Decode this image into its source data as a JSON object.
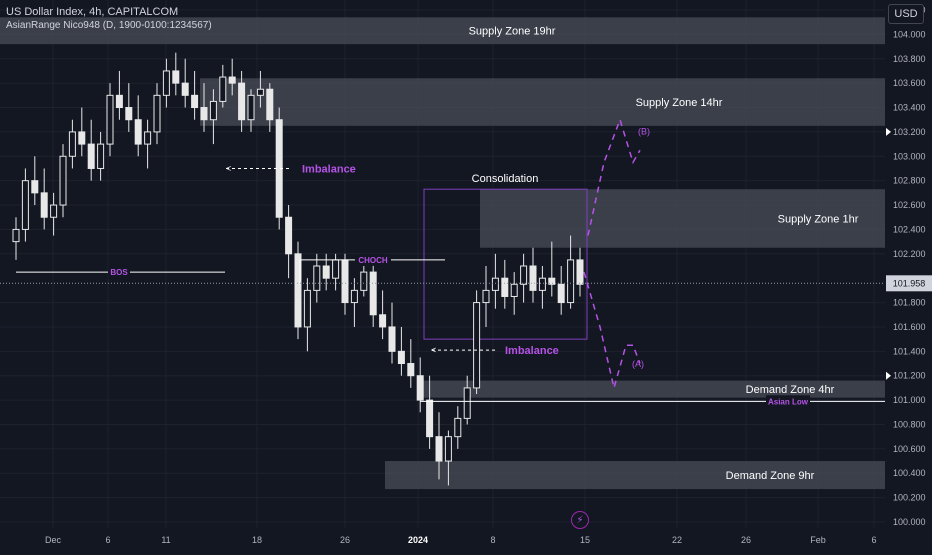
{
  "header": {
    "symbol_title": "US Dollar Index, 4h, CAPITALCOM",
    "indicator_title": "AsianRange Nico948 (D, 1900-0100:1234567)",
    "currency": "USD"
  },
  "colors": {
    "background": "#131722",
    "grid": "#1e222d",
    "candle": "#e8e8e8",
    "zone": "#4a4d58",
    "accent_purple": "#b553e6",
    "axis_text": "#b2b5be"
  },
  "chart_data": {
    "type": "candlestick",
    "timeframe": "4h",
    "ylim": [
      100.0,
      104.2
    ],
    "y_ticks": [
      "104.200",
      "104.000",
      "103.800",
      "103.600",
      "103.400",
      "103.200",
      "103.000",
      "102.800",
      "102.600",
      "102.400",
      "102.200",
      "101.800",
      "101.600",
      "101.400",
      "101.200",
      "101.000",
      "100.800",
      "100.600",
      "100.400",
      "100.200",
      "100.000"
    ],
    "x_ticks": [
      "Dec",
      "6",
      "11",
      "18",
      "26",
      "2024",
      "8",
      "15",
      "22",
      "26",
      "Feb",
      "6"
    ],
    "last_price": "101.958",
    "last_price_value": 101.958,
    "zones": [
      {
        "label": "Supply Zone 19hr",
        "low": 103.92,
        "high": 104.14
      },
      {
        "label": "Supply Zone 14hr",
        "low": 103.25,
        "high": 103.64
      },
      {
        "label": "Supply Zone 1hr",
        "low": 102.25,
        "high": 102.73
      },
      {
        "label": "Demand Zone 4hr",
        "low": 101.02,
        "high": 101.16
      },
      {
        "label": "Demand Zone 9hr",
        "low": 100.27,
        "high": 100.5
      }
    ],
    "annotations": {
      "consolidation": "Consolidation",
      "imbalance_1": "Imbalance",
      "imbalance_2": "Imbalance",
      "bos": "BOS",
      "choch": "CHOCH",
      "asian_low": "Asian Low",
      "point_a": "(A)",
      "point_b": "(B)"
    },
    "candles_ohlc": [
      [
        102.3,
        102.5,
        102.15,
        102.4
      ],
      [
        102.4,
        102.9,
        102.3,
        102.8
      ],
      [
        102.8,
        103.0,
        102.6,
        102.7
      ],
      [
        102.7,
        102.9,
        102.4,
        102.5
      ],
      [
        102.5,
        102.7,
        102.35,
        102.6
      ],
      [
        102.6,
        103.1,
        102.5,
        103.0
      ],
      [
        103.0,
        103.3,
        102.9,
        103.2
      ],
      [
        103.2,
        103.4,
        103.0,
        103.1
      ],
      [
        103.1,
        103.3,
        102.8,
        102.9
      ],
      [
        102.9,
        103.2,
        102.8,
        103.1
      ],
      [
        103.1,
        103.6,
        103.0,
        103.5
      ],
      [
        103.5,
        103.7,
        103.3,
        103.4
      ],
      [
        103.4,
        103.6,
        103.2,
        103.3
      ],
      [
        103.3,
        103.5,
        103.0,
        103.1
      ],
      [
        103.1,
        103.3,
        102.9,
        103.2
      ],
      [
        103.2,
        103.6,
        103.1,
        103.5
      ],
      [
        103.5,
        103.8,
        103.4,
        103.7
      ],
      [
        103.7,
        103.85,
        103.5,
        103.6
      ],
      [
        103.6,
        103.8,
        103.4,
        103.5
      ],
      [
        103.5,
        103.7,
        103.3,
        103.4
      ],
      [
        103.4,
        103.6,
        103.2,
        103.3
      ],
      [
        103.3,
        103.55,
        103.1,
        103.45
      ],
      [
        103.45,
        103.75,
        103.4,
        103.65
      ],
      [
        103.65,
        103.8,
        103.5,
        103.6
      ],
      [
        103.6,
        103.7,
        103.2,
        103.3
      ],
      [
        103.3,
        103.55,
        103.2,
        103.5
      ],
      [
        103.5,
        103.7,
        103.4,
        103.55
      ],
      [
        103.55,
        103.6,
        103.2,
        103.3
      ],
      [
        103.3,
        103.4,
        102.4,
        102.5
      ],
      [
        102.5,
        102.6,
        102.0,
        102.2
      ],
      [
        102.2,
        102.3,
        101.5,
        101.6
      ],
      [
        101.6,
        102.0,
        101.4,
        101.9
      ],
      [
        101.9,
        102.2,
        101.8,
        102.1
      ],
      [
        102.1,
        102.2,
        101.9,
        102.0
      ],
      [
        102.0,
        102.2,
        101.9,
        102.15
      ],
      [
        102.15,
        102.2,
        101.7,
        101.8
      ],
      [
        101.8,
        102.0,
        101.6,
        101.9
      ],
      [
        101.9,
        102.1,
        101.85,
        102.05
      ],
      [
        102.05,
        102.15,
        101.6,
        101.7
      ],
      [
        101.7,
        101.9,
        101.5,
        101.6
      ],
      [
        101.6,
        101.8,
        101.3,
        101.4
      ],
      [
        101.4,
        101.6,
        101.2,
        101.3
      ],
      [
        101.3,
        101.5,
        101.1,
        101.2
      ],
      [
        101.2,
        101.35,
        100.9,
        101.0
      ],
      [
        101.0,
        101.2,
        100.6,
        100.7
      ],
      [
        100.7,
        100.9,
        100.35,
        100.5
      ],
      [
        100.5,
        100.75,
        100.3,
        100.7
      ],
      [
        100.7,
        100.95,
        100.6,
        100.85
      ],
      [
        100.85,
        101.2,
        100.8,
        101.1
      ],
      [
        101.1,
        101.9,
        101.05,
        101.8
      ],
      [
        101.8,
        102.1,
        101.6,
        101.9
      ],
      [
        101.9,
        102.2,
        101.75,
        102.0
      ],
      [
        102.0,
        102.15,
        101.75,
        101.85
      ],
      [
        101.85,
        102.05,
        101.7,
        101.95
      ],
      [
        101.95,
        102.2,
        101.8,
        102.1
      ],
      [
        102.1,
        102.25,
        101.8,
        101.9
      ],
      [
        101.9,
        102.1,
        101.75,
        102.0
      ],
      [
        102.0,
        102.3,
        101.85,
        101.95
      ],
      [
        101.95,
        102.1,
        101.7,
        101.8
      ],
      [
        101.8,
        102.35,
        101.75,
        102.15
      ],
      [
        102.15,
        102.25,
        101.85,
        101.95
      ]
    ]
  }
}
